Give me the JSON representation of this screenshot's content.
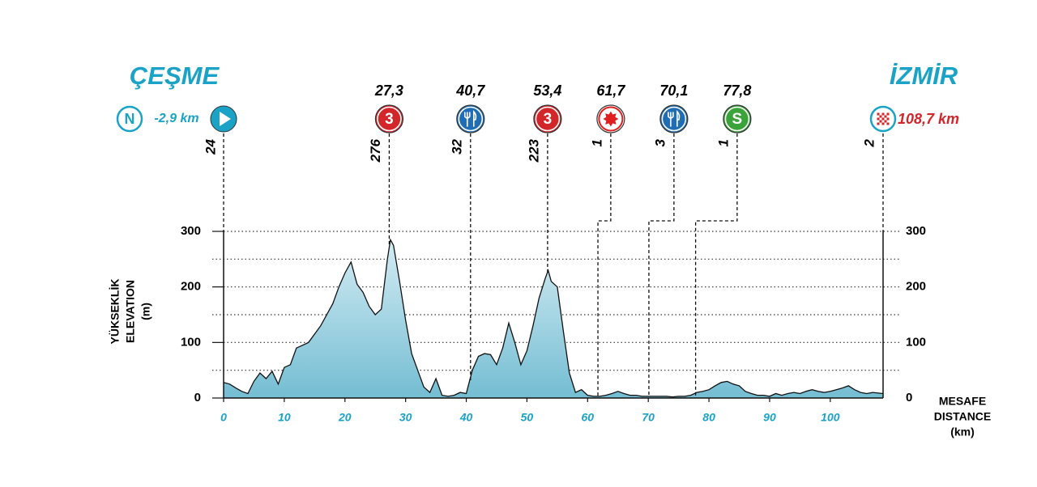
{
  "chart_data": {
    "type": "area",
    "start": {
      "name": "ÇEŞME",
      "badge": "N",
      "distance": {
        "value": -2.9,
        "label": "-2,9 km"
      },
      "elevation": 24
    },
    "finish": {
      "name": "İZMİR",
      "distance": {
        "value": 108.7,
        "label": "108,7 km"
      },
      "elevation": 2
    },
    "markers": [
      {
        "km": {
          "value": 27.3,
          "label": "27,3"
        },
        "elevation": 276,
        "icon": "climb",
        "badge": "3"
      },
      {
        "km": {
          "value": 40.7,
          "label": "40,7"
        },
        "elevation": 32,
        "icon": "food"
      },
      {
        "km": {
          "value": 53.4,
          "label": "53,4"
        },
        "elevation": 223,
        "icon": "climb",
        "badge": "3"
      },
      {
        "km": {
          "value": 61.7,
          "label": "61,7"
        },
        "elevation": 1,
        "icon": "sprint"
      },
      {
        "km": {
          "value": 70.1,
          "label": "70,1"
        },
        "elevation": 3,
        "icon": "food"
      },
      {
        "km": {
          "value": 77.8,
          "label": "77,8"
        },
        "elevation": 1,
        "icon": "bonus",
        "badge": "S"
      }
    ],
    "y_label": [
      "YÜKSEKLİK",
      "ELEVATION",
      "(m)"
    ],
    "x_label": [
      "MESAFE",
      "DISTANCE",
      "(km)"
    ],
    "x": [
      0,
      1,
      2,
      3,
      4,
      5,
      6,
      7,
      8,
      9,
      10,
      11,
      12,
      13,
      14,
      15,
      16,
      17,
      18,
      19,
      20,
      21,
      22,
      23,
      24,
      25,
      26,
      27,
      27.5,
      28,
      29,
      30,
      31,
      32,
      33,
      34,
      35,
      36,
      37,
      38,
      39,
      40,
      41,
      42,
      43,
      44,
      45,
      46,
      47,
      48,
      49,
      50,
      51,
      52,
      53,
      53.5,
      54,
      55,
      56,
      57,
      58,
      59,
      60,
      61,
      62,
      63,
      64,
      65,
      66,
      67,
      68,
      69,
      70,
      71,
      72,
      73,
      74,
      75,
      76,
      77,
      78,
      79,
      80,
      81,
      82,
      83,
      84,
      85,
      86,
      87,
      88,
      89,
      90,
      91,
      92,
      93,
      94,
      95,
      96,
      97,
      98,
      99,
      100,
      101,
      102,
      103,
      104,
      105,
      106,
      107,
      108.7
    ],
    "values": [
      28,
      25,
      18,
      12,
      8,
      30,
      45,
      35,
      48,
      25,
      55,
      60,
      90,
      95,
      100,
      115,
      130,
      150,
      170,
      200,
      225,
      245,
      205,
      190,
      165,
      150,
      160,
      250,
      285,
      275,
      210,
      140,
      80,
      50,
      20,
      10,
      35,
      5,
      3,
      5,
      10,
      8,
      50,
      75,
      80,
      78,
      60,
      90,
      135,
      100,
      60,
      85,
      130,
      180,
      215,
      230,
      210,
      200,
      120,
      45,
      10,
      15,
      5,
      3,
      3,
      5,
      8,
      12,
      8,
      5,
      5,
      3,
      3,
      3,
      3,
      3,
      2,
      3,
      3,
      5,
      10,
      12,
      15,
      22,
      28,
      30,
      25,
      22,
      12,
      8,
      5,
      5,
      3,
      8,
      5,
      8,
      10,
      8,
      12,
      15,
      12,
      10,
      12,
      15,
      18,
      22,
      15,
      10,
      8,
      10,
      8
    ],
    "xlim": [
      0,
      108.7
    ],
    "ylim": [
      0,
      300
    ],
    "xticks": [
      0,
      10,
      20,
      30,
      40,
      50,
      60,
      70,
      80,
      90,
      100
    ],
    "yticks": [
      0,
      100,
      200,
      300
    ],
    "yminor": [
      50,
      150,
      250
    ],
    "grid": true,
    "color": "#86c8db"
  }
}
